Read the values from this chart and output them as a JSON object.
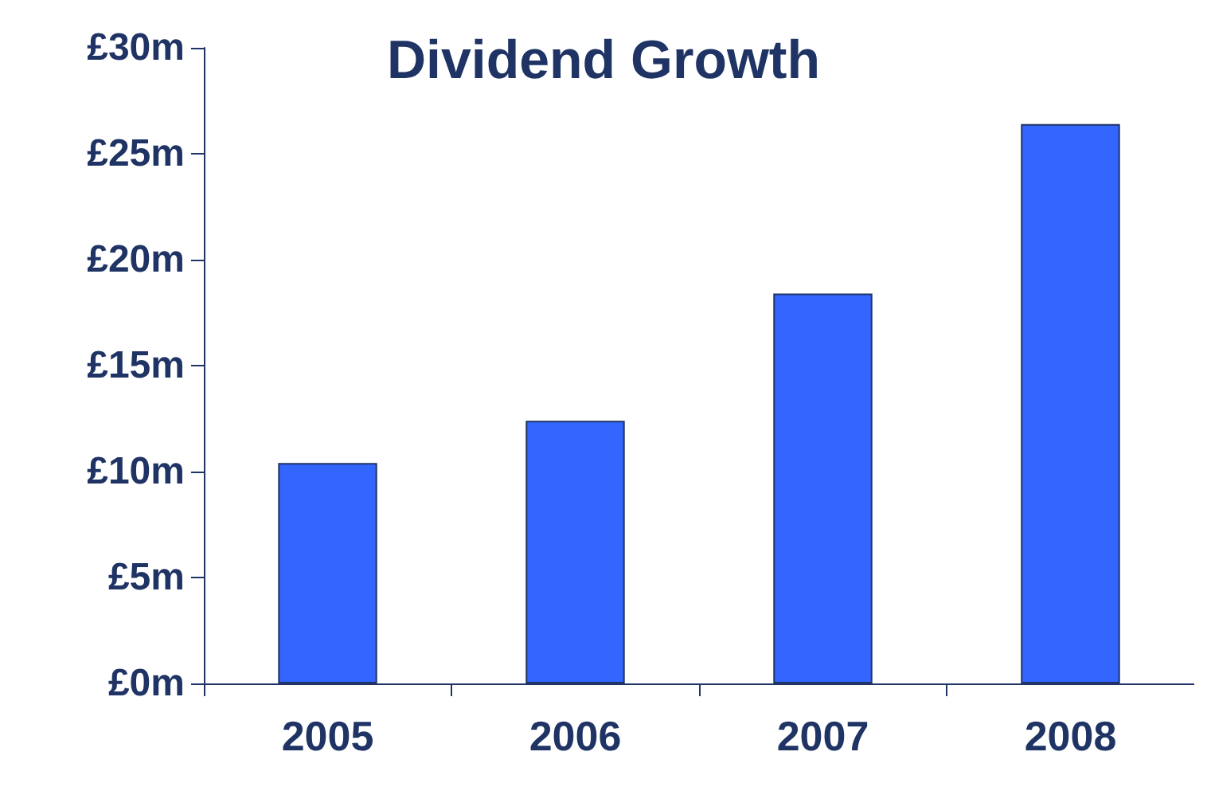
{
  "chart_data": {
    "type": "bar",
    "title": "Dividend Growth",
    "categories": [
      "2005",
      "2006",
      "2007",
      "2008"
    ],
    "values": [
      10.4,
      12.4,
      18.4,
      26.4
    ],
    "color": "#3366ff",
    "ylim": [
      0,
      30
    ],
    "yticks": [
      {
        "value": 0,
        "label": "£0m"
      },
      {
        "value": 5,
        "label": "£5m"
      },
      {
        "value": 10,
        "label": "£10m"
      },
      {
        "value": 15,
        "label": "£15m"
      },
      {
        "value": 20,
        "label": "£20m"
      },
      {
        "value": 25,
        "label": "£25m"
      },
      {
        "value": 30,
        "label": "£30m"
      }
    ],
    "grid": false
  }
}
